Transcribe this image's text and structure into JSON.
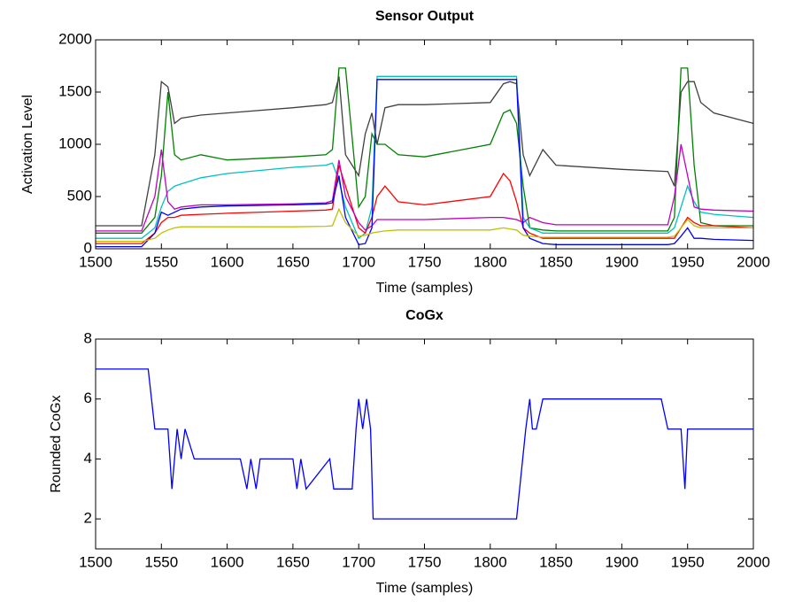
{
  "chart_data": [
    {
      "type": "line",
      "title": "Sensor Output",
      "x_label": "Time (samples)",
      "y_label": "Activation Level",
      "x": [
        1500,
        1535,
        1545,
        1550,
        1555,
        1560,
        1565,
        1580,
        1600,
        1650,
        1675,
        1680,
        1685,
        1690,
        1700,
        1705,
        1710,
        1714,
        1720,
        1730,
        1750,
        1800,
        1810,
        1815,
        1820,
        1825,
        1830,
        1840,
        1850,
        1900,
        1935,
        1940,
        1945,
        1950,
        1955,
        1960,
        1970,
        2000
      ],
      "series": [
        {
          "color": "#404040",
          "values": [
            220,
            220,
            900,
            1600,
            1550,
            1200,
            1250,
            1280,
            1300,
            1350,
            1380,
            1400,
            1650,
            900,
            700,
            1100,
            1300,
            1000,
            1350,
            1380,
            1380,
            1400,
            1580,
            1600,
            1580,
            900,
            700,
            950,
            800,
            760,
            740,
            600,
            1500,
            1600,
            1600,
            1400,
            1300,
            1200
          ]
        },
        {
          "color": "#008000",
          "values": [
            150,
            150,
            300,
            700,
            1500,
            900,
            850,
            900,
            850,
            880,
            900,
            950,
            1730,
            1730,
            400,
            500,
            1100,
            1000,
            1000,
            900,
            880,
            1000,
            1300,
            1330,
            1200,
            600,
            200,
            180,
            170,
            170,
            170,
            300,
            1730,
            1730,
            800,
            250,
            220,
            220
          ]
        },
        {
          "color": "#00c0c0",
          "values": [
            100,
            100,
            200,
            400,
            550,
            600,
            620,
            680,
            720,
            780,
            800,
            820,
            650,
            400,
            100,
            150,
            400,
            1650,
            1650,
            1650,
            1650,
            1650,
            1650,
            1650,
            1650,
            300,
            200,
            150,
            150,
            150,
            150,
            200,
            400,
            600,
            450,
            350,
            330,
            300
          ]
        },
        {
          "color": "#ff0000",
          "values": [
            50,
            50,
            150,
            250,
            300,
            300,
            320,
            330,
            340,
            360,
            370,
            380,
            800,
            600,
            200,
            150,
            300,
            500,
            600,
            450,
            420,
            500,
            720,
            650,
            450,
            200,
            150,
            100,
            100,
            100,
            100,
            100,
            200,
            300,
            250,
            220,
            220,
            200
          ]
        },
        {
          "color": "#c000c0",
          "values": [
            170,
            170,
            500,
            950,
            450,
            380,
            400,
            420,
            420,
            430,
            440,
            460,
            850,
            500,
            250,
            180,
            220,
            280,
            280,
            280,
            280,
            300,
            300,
            290,
            280,
            250,
            300,
            250,
            230,
            230,
            230,
            500,
            1000,
            700,
            400,
            380,
            370,
            360
          ]
        },
        {
          "color": "#0000ff",
          "values": [
            20,
            20,
            150,
            350,
            320,
            350,
            380,
            400,
            410,
            420,
            430,
            440,
            700,
            300,
            40,
            50,
            200,
            1620,
            1620,
            1620,
            1620,
            1620,
            1620,
            1620,
            1620,
            200,
            100,
            50,
            40,
            40,
            40,
            50,
            120,
            200,
            100,
            100,
            90,
            80
          ]
        },
        {
          "color": "#c0c000",
          "values": [
            70,
            70,
            100,
            150,
            180,
            200,
            210,
            210,
            210,
            210,
            215,
            220,
            380,
            250,
            120,
            130,
            150,
            160,
            170,
            180,
            180,
            180,
            200,
            190,
            180,
            130,
            120,
            110,
            110,
            110,
            110,
            120,
            200,
            280,
            220,
            200,
            200,
            200
          ]
        }
      ],
      "xlim": [
        1500,
        2000
      ],
      "xticks": [
        1500,
        1550,
        1600,
        1650,
        1700,
        1750,
        1800,
        1850,
        1900,
        1950,
        2000
      ],
      "ylim": [
        0,
        2000
      ],
      "yticks": [
        0,
        500,
        1000,
        1500,
        2000
      ]
    },
    {
      "type": "line",
      "title": "CoGx",
      "x_label": "Time (samples)",
      "y_label": "Rounded CoGx",
      "x": [
        1500,
        1540,
        1545,
        1555,
        1558,
        1562,
        1565,
        1568,
        1575,
        1610,
        1615,
        1618,
        1622,
        1625,
        1650,
        1653,
        1656,
        1660,
        1678,
        1681,
        1684,
        1695,
        1698,
        1700,
        1703,
        1706,
        1709,
        1711,
        1820,
        1827,
        1830,
        1832,
        1835,
        1840,
        1930,
        1935,
        1945,
        1948,
        1950,
        2000
      ],
      "series": [
        {
          "color": "#0000ff",
          "values": [
            7,
            7,
            5,
            5,
            3,
            5,
            4,
            5,
            4,
            4,
            3,
            4,
            3,
            4,
            4,
            3,
            4,
            3,
            4,
            3,
            3,
            3,
            5,
            6,
            5,
            6,
            5,
            2,
            2,
            5,
            6,
            5,
            5,
            6,
            6,
            5,
            5,
            3,
            5,
            5
          ]
        }
      ],
      "xlim": [
        1500,
        2000
      ],
      "xticks": [
        1500,
        1550,
        1600,
        1650,
        1700,
        1750,
        1800,
        1850,
        1900,
        1950,
        2000
      ],
      "ylim": [
        1,
        8
      ],
      "yticks": [
        2,
        4,
        6,
        8
      ]
    }
  ]
}
